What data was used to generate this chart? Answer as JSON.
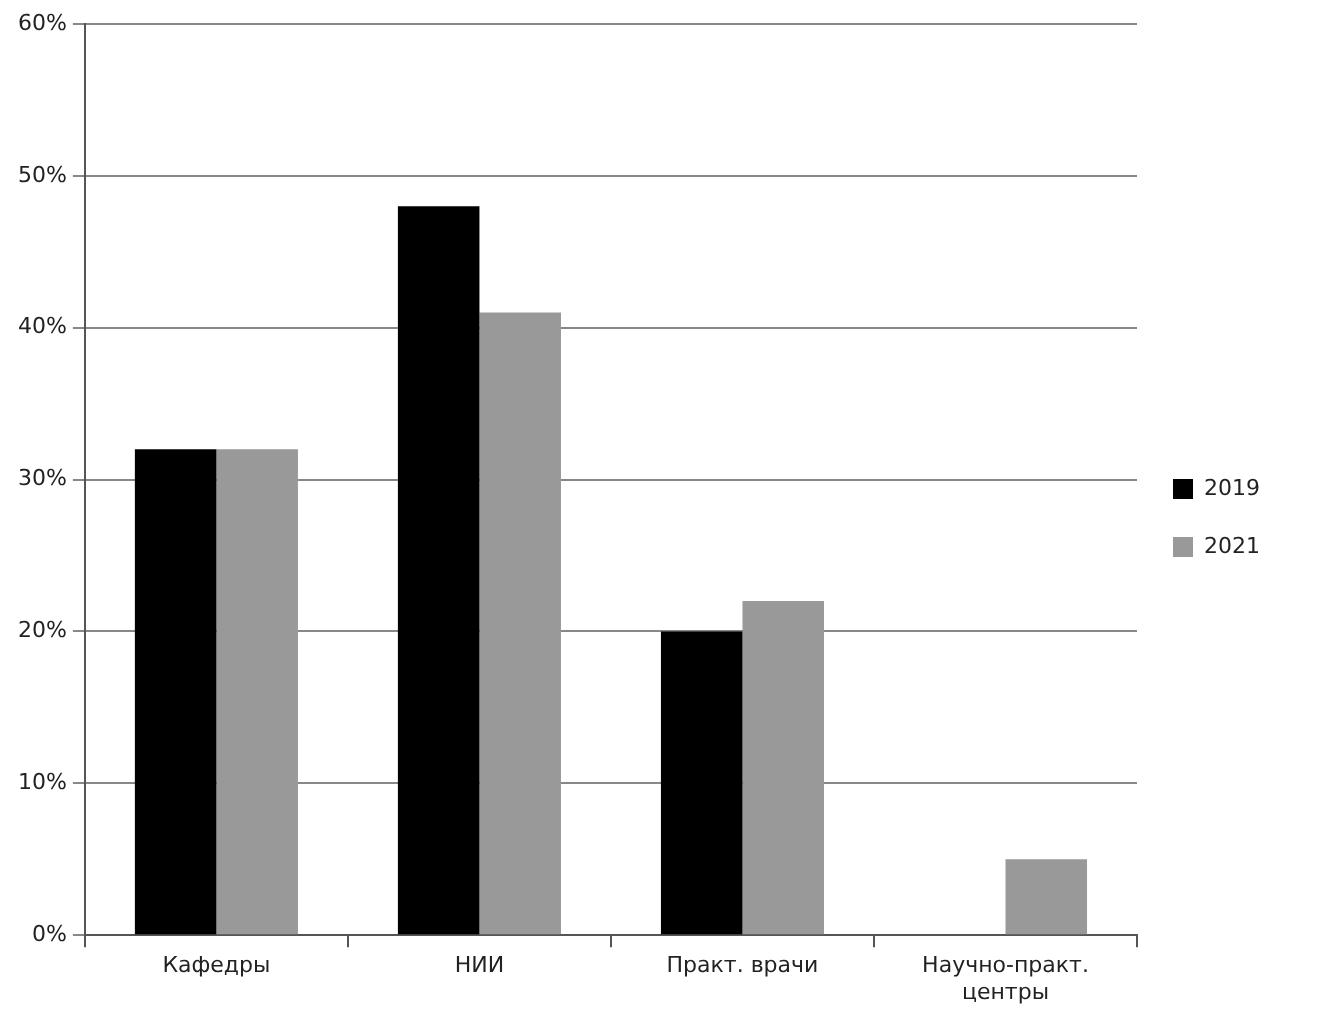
{
  "chart_data": {
    "type": "bar",
    "categories": [
      "Кафедры",
      "НИИ",
      "Практ. врачи",
      "Научно-практ. центры"
    ],
    "series": [
      {
        "name": "2019",
        "color": "#000000",
        "values": [
          32,
          48,
          20,
          0
        ]
      },
      {
        "name": "2021",
        "color": "#999999",
        "values": [
          32,
          41,
          22,
          5
        ]
      }
    ],
    "ylim": [
      0,
      60
    ],
    "yticks": [
      {
        "value": 0,
        "label": "0%"
      },
      {
        "value": 10,
        "label": "10%"
      },
      {
        "value": 20,
        "label": "20%"
      },
      {
        "value": 30,
        "label": "30%"
      },
      {
        "value": 40,
        "label": "40%"
      },
      {
        "value": 50,
        "label": "50%"
      },
      {
        "value": 60,
        "label": "60%"
      }
    ],
    "grid": "y",
    "legend": "right"
  }
}
